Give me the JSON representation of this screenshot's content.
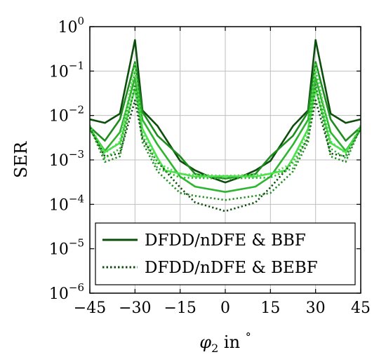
{
  "chart_data": {
    "type": "line",
    "title": "",
    "xlabel": "φ₂ in °",
    "xlabel_parts": {
      "symbol": "φ",
      "subscript": "2",
      "suffix": " in ",
      "degree": "°"
    },
    "ylabel": "SER",
    "xlim": [
      -45,
      45
    ],
    "ylim": [
      1e-06,
      1
    ],
    "yscale": "log",
    "grid": true,
    "legend_position": "bottom-center",
    "x_ticks": [
      -45,
      -30,
      -15,
      0,
      15,
      30,
      45
    ],
    "x_tick_labels": [
      "−45",
      "−30",
      "−15",
      "0",
      "15",
      "30",
      "45"
    ],
    "y_ticks": [
      {
        "base": "10",
        "exp": "0"
      },
      {
        "base": "10",
        "exp": "−1"
      },
      {
        "base": "10",
        "exp": "−2"
      },
      {
        "base": "10",
        "exp": "−3"
      },
      {
        "base": "10",
        "exp": "−4"
      },
      {
        "base": "10",
        "exp": "−5"
      },
      {
        "base": "10",
        "exp": "−6"
      }
    ],
    "y_tick_values": [
      1,
      0.1,
      0.01,
      0.001,
      0.0001,
      1e-05,
      1e-06
    ],
    "legend": [
      {
        "label": "DFDD/nDFE & BBF",
        "style": "solid",
        "color": "#0b4d0b"
      },
      {
        "label": "DFDD/nDFE & BEBF",
        "style": "dotted",
        "color": "#0b4d0b"
      }
    ],
    "series": [
      {
        "style": "solid",
        "color": "#0b4d0b",
        "points": [
          [
            -45,
            0.0082
          ],
          [
            -40,
            0.0068
          ],
          [
            -35,
            0.011
          ],
          [
            -30,
            0.5
          ],
          [
            -27.5,
            0.013
          ],
          [
            -22.5,
            0.0058
          ],
          [
            -15,
            0.00095
          ],
          [
            -10,
            0.00058
          ],
          [
            -5,
            0.00041
          ],
          [
            0,
            0.00031
          ],
          [
            5,
            0.00041
          ],
          [
            10,
            0.00058
          ],
          [
            15,
            0.00095
          ],
          [
            22.5,
            0.0058
          ],
          [
            27.5,
            0.013
          ],
          [
            30,
            0.5
          ],
          [
            35,
            0.011
          ],
          [
            40,
            0.0068
          ],
          [
            45,
            0.0082
          ]
        ]
      },
      {
        "style": "solid",
        "color": "#1f8c1f",
        "points": [
          [
            -45,
            0.0055
          ],
          [
            -40,
            0.0027
          ],
          [
            -35,
            0.0082
          ],
          [
            -30,
            0.16
          ],
          [
            -27.5,
            0.012
          ],
          [
            -22.5,
            0.0035
          ],
          [
            -15,
            0.0012
          ],
          [
            -10,
            0.00048
          ],
          [
            0,
            0.00038
          ],
          [
            10,
            0.00048
          ],
          [
            15,
            0.0012
          ],
          [
            22.5,
            0.0035
          ],
          [
            27.5,
            0.012
          ],
          [
            30,
            0.16
          ],
          [
            35,
            0.0082
          ],
          [
            40,
            0.0027
          ],
          [
            45,
            0.0055
          ]
        ]
      },
      {
        "style": "solid",
        "color": "#2fb52f",
        "points": [
          [
            -45,
            0.005
          ],
          [
            -40,
            0.0016
          ],
          [
            -35,
            0.0042
          ],
          [
            -30,
            0.07
          ],
          [
            -27.5,
            0.008
          ],
          [
            -22.5,
            0.0022
          ],
          [
            -15,
            0.00042
          ],
          [
            -10,
            0.00025
          ],
          [
            0,
            0.00019
          ],
          [
            10,
            0.00025
          ],
          [
            15,
            0.00042
          ],
          [
            22.5,
            0.0022
          ],
          [
            27.5,
            0.008
          ],
          [
            30,
            0.07
          ],
          [
            35,
            0.0042
          ],
          [
            40,
            0.0016
          ],
          [
            45,
            0.005
          ]
        ]
      },
      {
        "style": "solid",
        "color": "#4ee04e",
        "points": [
          [
            -45,
            0.0048
          ],
          [
            -40,
            0.0015
          ],
          [
            -35,
            0.0024
          ],
          [
            -30,
            0.04
          ],
          [
            -27.5,
            0.005
          ],
          [
            -22.5,
            0.0011
          ],
          [
            -20,
            0.00058
          ],
          [
            -10,
            0.00042
          ],
          [
            0,
            0.00043
          ],
          [
            10,
            0.00042
          ],
          [
            20,
            0.00058
          ],
          [
            22.5,
            0.0011
          ],
          [
            27.5,
            0.005
          ],
          [
            30,
            0.04
          ],
          [
            35,
            0.0024
          ],
          [
            40,
            0.0015
          ],
          [
            45,
            0.0048
          ]
        ]
      },
      {
        "style": "dotted",
        "color": "#0b4d0b",
        "points": [
          [
            -45,
            0.0052
          ],
          [
            -40,
            0.0012
          ],
          [
            -35,
            0.0014
          ],
          [
            -30,
            0.022
          ],
          [
            -27.5,
            0.003
          ],
          [
            -22.5,
            0.0009
          ],
          [
            -15,
            0.00024
          ],
          [
            -10,
            0.00011
          ],
          [
            -5,
            8.8e-05
          ],
          [
            0,
            7e-05
          ],
          [
            5,
            8.8e-05
          ],
          [
            10,
            0.00011
          ],
          [
            15,
            0.00024
          ],
          [
            22.5,
            0.0009
          ],
          [
            27.5,
            0.003
          ],
          [
            30,
            0.022
          ],
          [
            35,
            0.0014
          ],
          [
            40,
            0.0012
          ],
          [
            45,
            0.0052
          ]
        ]
      },
      {
        "style": "dotted",
        "color": "#1f8c1f",
        "points": [
          [
            -45,
            0.0055
          ],
          [
            -40,
            0.0009
          ],
          [
            -35,
            0.0012
          ],
          [
            -30,
            0.05
          ],
          [
            -27.5,
            0.0025
          ],
          [
            -22.5,
            0.00055
          ],
          [
            -15,
            0.00018
          ],
          [
            -10,
            0.000155
          ],
          [
            0,
            0.000125
          ],
          [
            10,
            0.000155
          ],
          [
            15,
            0.00018
          ],
          [
            22.5,
            0.00055
          ],
          [
            27.5,
            0.0025
          ],
          [
            30,
            0.05
          ],
          [
            35,
            0.0012
          ],
          [
            40,
            0.0009
          ],
          [
            45,
            0.0055
          ]
        ]
      },
      {
        "style": "dotted",
        "color": "#2fb52f",
        "points": [
          [
            -45,
            0.0058
          ],
          [
            -40,
            0.0011
          ],
          [
            -35,
            0.0018
          ],
          [
            -30,
            0.1
          ],
          [
            -27.5,
            0.0035
          ],
          [
            -22.5,
            0.00065
          ],
          [
            -15,
            0.0004
          ],
          [
            0,
            0.00038
          ],
          [
            15,
            0.0004
          ],
          [
            22.5,
            0.00065
          ],
          [
            27.5,
            0.0035
          ],
          [
            30,
            0.1
          ],
          [
            35,
            0.0018
          ],
          [
            40,
            0.0011
          ],
          [
            45,
            0.0058
          ]
        ]
      },
      {
        "style": "dotted",
        "color": "#4ee04e",
        "points": [
          [
            -45,
            0.006
          ],
          [
            -40,
            0.0014
          ],
          [
            -35,
            0.0026
          ],
          [
            -30,
            0.14
          ],
          [
            -27.5,
            0.0045
          ],
          [
            -22.5,
            0.00085
          ],
          [
            -15,
            0.00048
          ],
          [
            0,
            0.00044
          ],
          [
            15,
            0.00048
          ],
          [
            22.5,
            0.00085
          ],
          [
            27.5,
            0.0045
          ],
          [
            30,
            0.14
          ],
          [
            35,
            0.0026
          ],
          [
            40,
            0.0014
          ],
          [
            45,
            0.006
          ]
        ]
      }
    ]
  }
}
